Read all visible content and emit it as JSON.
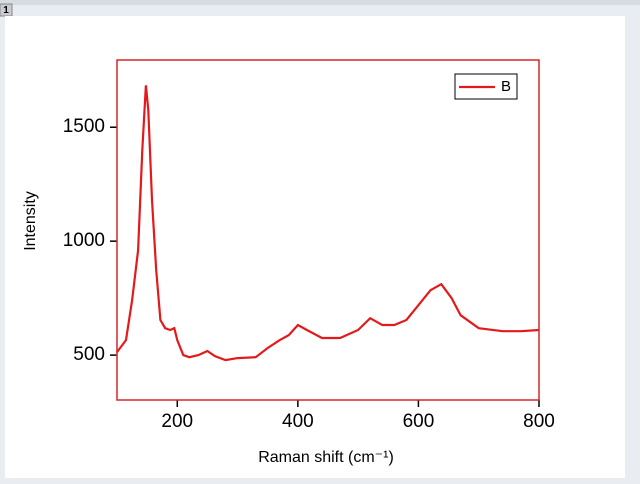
{
  "window_title": "1",
  "chart_data": {
    "type": "line",
    "xlabel": "Raman shift (cm⁻¹)",
    "ylabel": "Intensity",
    "x": [
      100,
      115,
      125,
      135,
      142,
      148,
      152,
      158,
      165,
      172,
      180,
      188,
      195,
      200,
      210,
      220,
      235,
      250,
      262,
      280,
      300,
      330,
      350,
      370,
      385,
      400,
      415,
      440,
      470,
      500,
      520,
      540,
      560,
      580,
      600,
      620,
      638,
      655,
      670,
      700,
      740,
      770,
      800
    ],
    "series": [
      {
        "name": "B",
        "color": "#e31a1c",
        "values": [
          513,
          566,
          741,
          960,
          1400,
          1684,
          1575,
          1180,
          873,
          654,
          618,
          610,
          618,
          566,
          500,
          491,
          500,
          518,
          496,
          478,
          487,
          491,
          531,
          566,
          588,
          632,
          610,
          575,
          575,
          610,
          662,
          632,
          632,
          654,
          719,
          785,
          811,
          750,
          675,
          618,
          605,
          605,
          610
        ]
      }
    ],
    "xlim": [
      100,
      800
    ],
    "ylim": [
      303,
      1795
    ],
    "xticks": [
      200,
      400,
      600,
      800
    ],
    "yticks": [
      500,
      1000,
      1500
    ],
    "frame_color": "#d62728",
    "legend": "upper right"
  }
}
